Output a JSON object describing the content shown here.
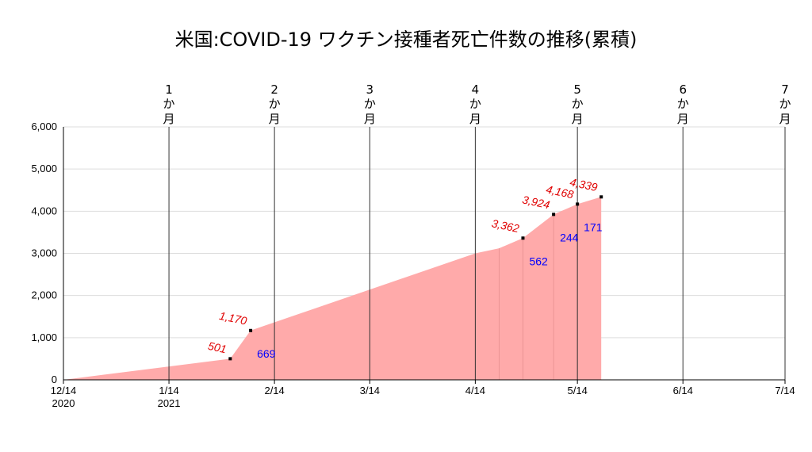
{
  "chart_data": {
    "type": "area",
    "title": "米国:COVID-19 ワクチン接種者死亡件数の推移(累積)",
    "xlabel": "",
    "ylabel": "",
    "ylim": [
      0,
      6000
    ],
    "xlim": [
      "2020-12-14",
      "2021-07-14"
    ],
    "y_ticks": [
      0,
      1000,
      2000,
      3000,
      4000,
      5000,
      6000
    ],
    "y_tick_labels": [
      "0",
      "1,000",
      "2,000",
      "3,000",
      "4,000",
      "5,000",
      "6,000"
    ],
    "x_ticks": [
      "2020-12-14",
      "2021-01-14",
      "2021-02-14",
      "2021-03-14",
      "2021-04-14",
      "2021-05-14",
      "2021-06-14",
      "2021-07-14"
    ],
    "x_tick_labels": [
      "12/14",
      "1/14",
      "2/14",
      "3/14",
      "4/14",
      "5/14",
      "6/14",
      "7/14"
    ],
    "x_year_labels": [
      {
        "date": "2020-12-14",
        "label": "2020"
      },
      {
        "date": "2021-01-14",
        "label": "2021"
      }
    ],
    "month_markers": [
      {
        "date": "2021-01-14",
        "number": "1",
        "unit1": "か",
        "unit2": "月"
      },
      {
        "date": "2021-02-14",
        "number": "2",
        "unit1": "か",
        "unit2": "月"
      },
      {
        "date": "2021-03-14",
        "number": "3",
        "unit1": "か",
        "unit2": "月"
      },
      {
        "date": "2021-04-14",
        "number": "4",
        "unit1": "か",
        "unit2": "月"
      },
      {
        "date": "2021-05-14",
        "number": "5",
        "unit1": "か",
        "unit2": "月"
      },
      {
        "date": "2021-06-14",
        "number": "6",
        "unit1": "か",
        "unit2": "月"
      },
      {
        "date": "2021-07-14",
        "number": "7",
        "unit1": "か",
        "unit2": "月"
      }
    ],
    "series": [
      {
        "points": [
          {
            "x": "2020-12-14",
            "y": 0
          },
          {
            "x": "2021-02-01",
            "y": 501,
            "label": "501"
          },
          {
            "x": "2021-02-07",
            "y": 1170,
            "label": "1,170",
            "increase": "669"
          },
          {
            "x": "2021-04-14",
            "y": 3000
          },
          {
            "x": "2021-04-21",
            "y": 3120
          },
          {
            "x": "2021-04-28",
            "y": 3362,
            "label": "3,362",
            "increase": "562"
          },
          {
            "x": "2021-05-07",
            "y": 3924,
            "label": "3,924",
            "increase": "244"
          },
          {
            "x": "2021-05-14",
            "y": 4168,
            "label": "4,168",
            "increase": "171"
          },
          {
            "x": "2021-05-21",
            "y": 4339,
            "label": "4,339"
          }
        ]
      }
    ],
    "colors": {
      "fill": "#ffaaaa",
      "cumulative_label": "#e00000",
      "increase_label": "#0000ff"
    },
    "grid": true
  }
}
